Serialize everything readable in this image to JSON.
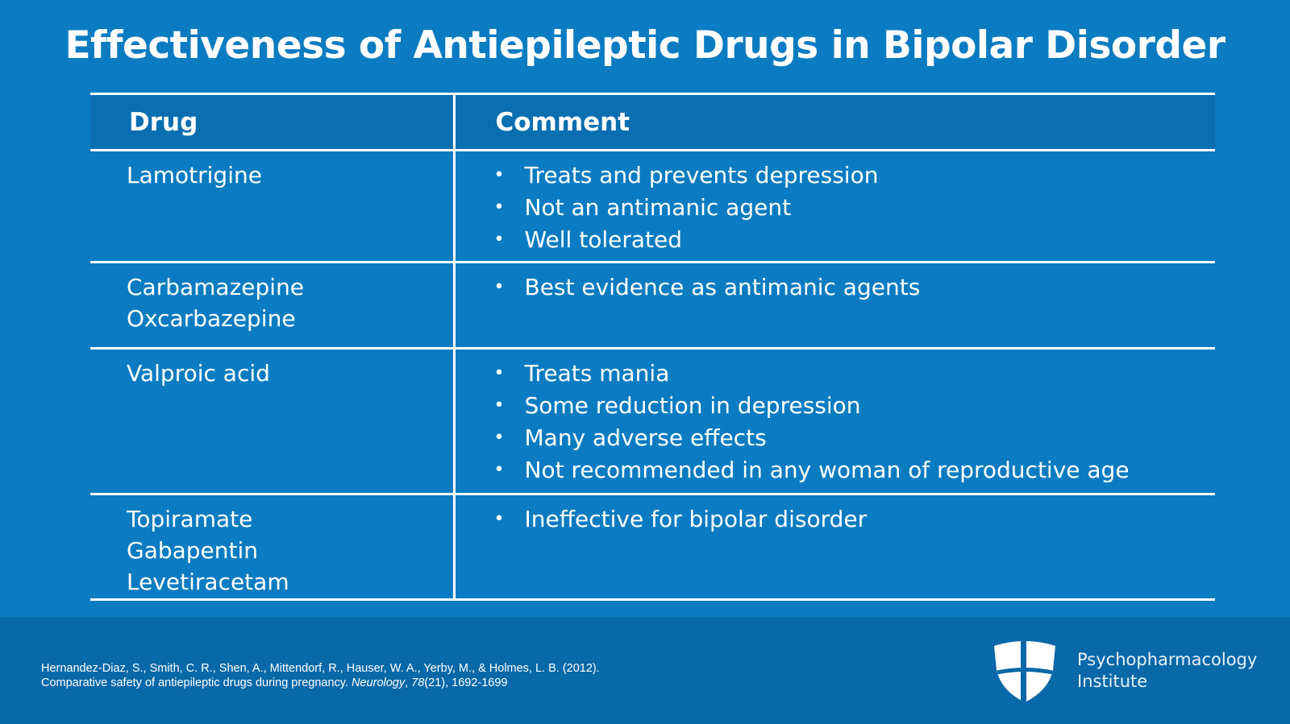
{
  "title": "Effectiveness of Antiepileptic Drugs in Bipolar Disorder",
  "table": {
    "headers": {
      "drug": "Drug",
      "comment": "Comment"
    },
    "rows": [
      {
        "drugs": [
          "Lamotrigine"
        ],
        "comments": [
          "Treats and prevents depression",
          "Not an antimanic agent",
          "Well tolerated"
        ]
      },
      {
        "drugs": [
          "Carbamazepine",
          "Oxcarbazepine"
        ],
        "comments": [
          "Best evidence as antimanic agents"
        ]
      },
      {
        "drugs": [
          "Valproic acid"
        ],
        "comments": [
          "Treats mania",
          "Some reduction in depression",
          "Many adverse effects",
          "Not recommended in any woman of reproductive age"
        ]
      },
      {
        "drugs": [
          "Topiramate",
          "Gabapentin",
          "Levetiracetam"
        ],
        "comments": [
          "Ineffective for bipolar disorder"
        ]
      }
    ]
  },
  "citation": {
    "line1": "Hernandez-Diaz, S., Smith, C. R., Shen, A., Mittendorf, R., Hauser, W. A., Yerby, M., & Holmes, L. B. (2012).",
    "line2_prefix": "Comparative safety of antiepileptic drugs during pregnancy. ",
    "journal": "Neurology",
    "separator": ", ",
    "volume": "78",
    "line2_suffix": "(21), 1692-1699"
  },
  "logo": {
    "line1": "Psychopharmacology",
    "line2": "Institute",
    "icon": "shield-cross-icon"
  },
  "colors": {
    "background": "#0b7cc1",
    "header_row": "#0a6fb0",
    "footer": "#0868a8",
    "text": "#ffffff"
  }
}
